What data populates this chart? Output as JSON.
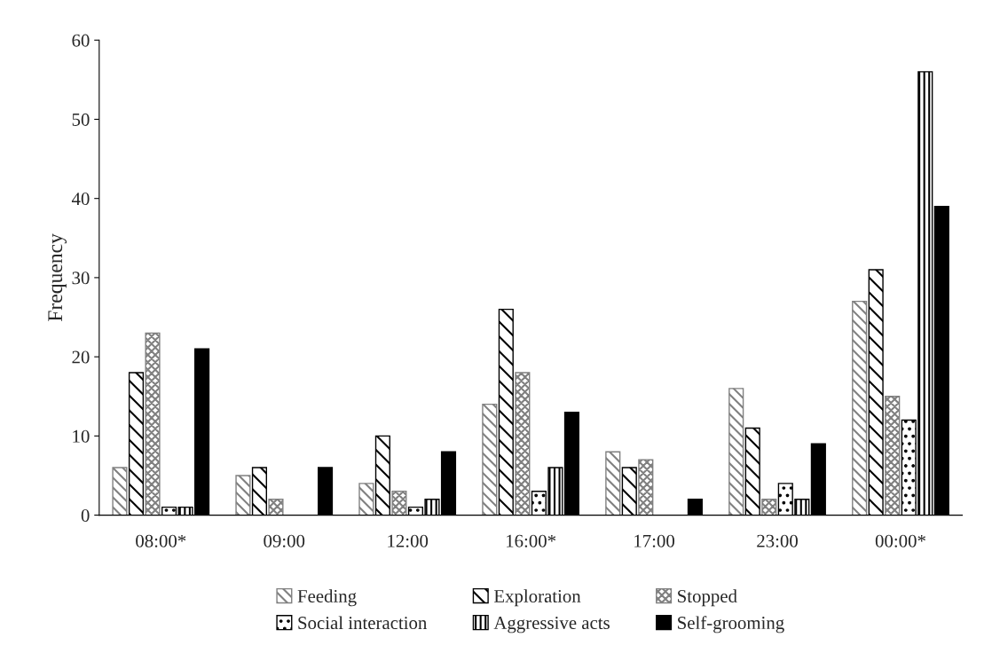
{
  "chart_data": {
    "type": "bar",
    "ylabel": "Frequency",
    "categories": [
      "08:00*",
      "09:00",
      "12:00",
      "16:00*",
      "17:00",
      "23:00",
      "00:00*"
    ],
    "series": [
      {
        "name": "Feeding",
        "color": "#808080",
        "values": [
          6,
          5,
          4,
          14,
          8,
          16,
          27
        ]
      },
      {
        "name": "Exploration",
        "color": "#000000",
        "values": [
          18,
          6,
          10,
          26,
          6,
          11,
          31
        ]
      },
      {
        "name": "Stopped",
        "color": "#808080",
        "values": [
          23,
          2,
          3,
          18,
          7,
          2,
          15
        ]
      },
      {
        "name": "Social interaction",
        "color": "#000000",
        "values": [
          1,
          0,
          1,
          3,
          0,
          4,
          12
        ]
      },
      {
        "name": "Aggressive acts",
        "color": "#000000",
        "values": [
          1,
          0,
          2,
          6,
          0,
          2,
          56
        ]
      },
      {
        "name": "Self-grooming",
        "color": "#000000",
        "values": [
          21,
          6,
          8,
          13,
          2,
          9,
          39
        ]
      }
    ],
    "ylim": [
      0,
      60
    ],
    "yticks": [
      0,
      10,
      20,
      30,
      40,
      50,
      60
    ],
    "grid": false,
    "legend": "bottom"
  }
}
